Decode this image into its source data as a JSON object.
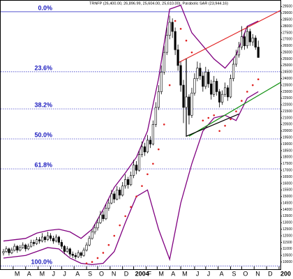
{
  "chart_data": {
    "type": "candlestick",
    "title": "TRNFP (26,400.00, 26,896.99, 25,604.00, 25,610.00), Parabolic SAR (23,944.16)",
    "ylim": [
      9500,
      30000
    ],
    "xlim": [
      -1,
      100
    ],
    "yticks": [
      10000,
      10500,
      11000,
      11500,
      12000,
      12500,
      13000,
      13500,
      14000,
      14500,
      15000,
      15500,
      16000,
      16500,
      17000,
      17500,
      18000,
      18500,
      19000,
      19500,
      20000,
      20500,
      21000,
      21500,
      22000,
      22500,
      23000,
      23500,
      24000,
      24500,
      25000,
      25500,
      26000,
      26500,
      27000,
      27500,
      28000,
      28500,
      29000,
      29500
    ],
    "xticks": [
      {
        "value": 3.5,
        "label": "M"
      },
      {
        "value": 8,
        "label": "A"
      },
      {
        "value": 12.5,
        "label": "M"
      },
      {
        "value": 17,
        "label": "J"
      },
      {
        "value": 21,
        "label": "J"
      },
      {
        "value": 25.5,
        "label": "A"
      },
      {
        "value": 30,
        "label": "S"
      },
      {
        "value": 34,
        "label": "O"
      },
      {
        "value": 38.5,
        "label": "N"
      },
      {
        "value": 43,
        "label": "D"
      },
      {
        "value": 47,
        "label": "2004"
      },
      {
        "value": 51.5,
        "label": "F"
      },
      {
        "value": 55.5,
        "label": "M"
      },
      {
        "value": 60,
        "label": "A"
      },
      {
        "value": 64,
        "label": "M"
      },
      {
        "value": 69,
        "label": "J"
      },
      {
        "value": 73,
        "label": "J"
      },
      {
        "value": 77.5,
        "label": "A"
      },
      {
        "value": 82,
        "label": "S"
      },
      {
        "value": 86,
        "label": "O"
      },
      {
        "value": 90.5,
        "label": "N"
      },
      {
        "value": 95,
        "label": "D"
      },
      {
        "value": 99.5,
        "label": "200"
      }
    ],
    "fib_levels": [
      {
        "value": 29100,
        "label": "0.0%"
      },
      {
        "value": 24522,
        "label": "23.6%"
      },
      {
        "value": 21689,
        "label": "38.2%"
      },
      {
        "value": 19400,
        "label": "50.0%"
      },
      {
        "value": 17111,
        "label": "61.8%"
      },
      {
        "value": 9700,
        "label": "100.0%"
      }
    ],
    "fib_color": "#2020c0",
    "ohlc": [
      [
        10700,
        11000,
        10500,
        10800
      ],
      [
        10800,
        11200,
        10700,
        11000
      ],
      [
        11000,
        11100,
        10500,
        10700
      ],
      [
        10700,
        11100,
        10600,
        10900
      ],
      [
        10900,
        11400,
        10800,
        11200
      ],
      [
        11200,
        11300,
        10700,
        10900
      ],
      [
        10900,
        11300,
        10800,
        11100
      ],
      [
        11100,
        11500,
        11000,
        11300
      ],
      [
        11300,
        11400,
        10800,
        11000
      ],
      [
        11000,
        11400,
        10900,
        11200
      ],
      [
        11200,
        11700,
        11100,
        11500
      ],
      [
        11500,
        11700,
        11200,
        11400
      ],
      [
        11400,
        11900,
        11300,
        11700
      ],
      [
        11700,
        11900,
        11400,
        11600
      ],
      [
        11600,
        12200,
        11500,
        11900
      ],
      [
        11900,
        12000,
        11500,
        11700
      ],
      [
        11700,
        12300,
        11600,
        12000
      ],
      [
        12000,
        12200,
        11600,
        11800
      ],
      [
        11800,
        12000,
        11400,
        11600
      ],
      [
        11600,
        12100,
        11500,
        11900
      ],
      [
        11900,
        12000,
        11300,
        11500
      ],
      [
        11500,
        11700,
        11000,
        11200
      ],
      [
        11200,
        11300,
        10600,
        10800
      ],
      [
        10800,
        11200,
        10700,
        11000
      ],
      [
        11000,
        11100,
        10400,
        10600
      ],
      [
        10600,
        10800,
        10300,
        10500
      ],
      [
        10500,
        10700,
        10200,
        10400
      ],
      [
        10400,
        10900,
        10300,
        10700
      ],
      [
        10700,
        10800,
        10300,
        10500
      ],
      [
        10500,
        11100,
        10400,
        10900
      ],
      [
        10900,
        11500,
        10800,
        11300
      ],
      [
        11300,
        12000,
        11200,
        11800
      ],
      [
        11800,
        12500,
        11700,
        12300
      ],
      [
        12300,
        12900,
        12100,
        12600
      ],
      [
        12600,
        13300,
        12400,
        13000
      ],
      [
        13000,
        13900,
        12900,
        13600
      ],
      [
        13600,
        13900,
        13100,
        13300
      ],
      [
        13300,
        14400,
        13200,
        14100
      ],
      [
        14100,
        14800,
        13900,
        14500
      ],
      [
        14500,
        15500,
        14400,
        15200
      ],
      [
        15200,
        15400,
        14500,
        14800
      ],
      [
        14800,
        15800,
        14700,
        15500
      ],
      [
        15500,
        15700,
        14800,
        15100
      ],
      [
        15100,
        16100,
        15000,
        15800
      ],
      [
        15800,
        16700,
        15600,
        16300
      ],
      [
        16300,
        16500,
        15600,
        15900
      ],
      [
        15900,
        16900,
        15800,
        16600
      ],
      [
        16600,
        17800,
        16400,
        17400
      ],
      [
        17400,
        17700,
        16700,
        17000
      ],
      [
        17000,
        18500,
        16900,
        18200
      ],
      [
        18200,
        19200,
        18000,
        18800
      ],
      [
        18800,
        19100,
        18100,
        18400
      ],
      [
        18400,
        19700,
        18300,
        19300
      ],
      [
        19300,
        19600,
        18700,
        19000
      ],
      [
        19000,
        20800,
        18900,
        20500
      ],
      [
        20500,
        22200,
        20300,
        21800
      ],
      [
        21800,
        23500,
        21600,
        23000
      ],
      [
        23000,
        25000,
        22800,
        24500
      ],
      [
        24500,
        26500,
        24300,
        26000
      ],
      [
        26000,
        27900,
        25800,
        27300
      ],
      [
        27300,
        28800,
        27000,
        28300
      ],
      [
        28300,
        28600,
        27100,
        27600
      ],
      [
        27600,
        27900,
        25800,
        26200
      ],
      [
        26200,
        26600,
        24600,
        25000
      ],
      [
        25000,
        25300,
        23000,
        23500
      ],
      [
        23500,
        23900,
        20600,
        21800
      ],
      [
        21800,
        23100,
        21500,
        22600
      ],
      [
        22600,
        22800,
        20500,
        21200
      ],
      [
        21200,
        23300,
        21000,
        22900
      ],
      [
        22900,
        24400,
        22700,
        24000
      ],
      [
        24000,
        25300,
        23800,
        24800
      ],
      [
        24800,
        25200,
        23900,
        24200
      ],
      [
        24200,
        24500,
        23000,
        23400
      ],
      [
        23400,
        24900,
        23200,
        24500
      ],
      [
        24500,
        24700,
        23300,
        23600
      ],
      [
        23600,
        23900,
        22400,
        22800
      ],
      [
        22800,
        24200,
        22600,
        23800
      ],
      [
        23800,
        24000,
        22700,
        23000
      ],
      [
        23000,
        23200,
        21800,
        22200
      ],
      [
        22200,
        23100,
        22000,
        22800
      ],
      [
        22800,
        23700,
        22600,
        23300
      ],
      [
        23300,
        23500,
        22300,
        22600
      ],
      [
        22600,
        24300,
        22500,
        24000
      ],
      [
        24000,
        25500,
        23800,
        25100
      ],
      [
        25100,
        26200,
        24900,
        25800
      ],
      [
        25800,
        26800,
        25600,
        26400
      ],
      [
        26400,
        28000,
        26200,
        27200
      ],
      [
        27200,
        27500,
        26200,
        26500
      ],
      [
        26500,
        28000,
        26300,
        27600
      ],
      [
        27600,
        27800,
        26500,
        26800
      ],
      [
        26800,
        27400,
        26500,
        27100
      ],
      [
        27100,
        27300,
        26200,
        26400
      ],
      [
        26400,
        26896.99,
        25604,
        25610
      ]
    ],
    "bands": {
      "color": "#800080",
      "x": [
        0,
        4,
        8,
        12,
        16,
        20,
        24,
        28,
        32,
        36,
        40,
        44,
        48,
        52,
        56,
        60,
        64,
        68,
        72,
        76,
        80,
        84,
        88,
        92
      ],
      "upper": [
        11600,
        11700,
        11800,
        12200,
        12400,
        12500,
        12300,
        11800,
        12500,
        14000,
        15700,
        16800,
        18000,
        20000,
        24000,
        29300,
        29600,
        27500,
        26500,
        25500,
        24800,
        25800,
        28000,
        28400
      ],
      "lower": [
        10300,
        10400,
        10500,
        10800,
        11100,
        11000,
        10300,
        9900,
        9800,
        9900,
        10800,
        13000,
        15000,
        15500,
        12500,
        10200,
        14500,
        17500,
        20000,
        21000,
        21200,
        20800,
        22500,
        23000
      ]
    },
    "sar": {
      "color": "#e02020",
      "x": [
        30,
        32,
        34,
        36,
        38,
        40,
        42,
        44,
        46,
        48,
        50,
        52,
        54,
        56,
        58,
        60,
        62,
        64,
        66,
        68,
        72,
        74,
        76,
        78,
        80,
        82,
        84,
        86,
        88,
        90,
        92
      ],
      "values": [
        9900,
        10000,
        10300,
        10700,
        11300,
        12000,
        12800,
        13500,
        14200,
        15000,
        15800,
        16700,
        17500,
        18600,
        20500,
        23500,
        28400,
        27800,
        26900,
        26000,
        20800,
        21000,
        21200,
        20000,
        20400,
        20900,
        21500,
        22300,
        23000,
        23500,
        23944.16
      ]
    },
    "trendlines": [
      {
        "color": "#e02020",
        "points": [
          [
            63,
            25200
          ],
          [
            100,
            29200
          ]
        ]
      },
      {
        "color": "#109010",
        "points": [
          [
            67,
            19600
          ],
          [
            100,
            23700
          ]
        ]
      },
      {
        "color": "#000000",
        "points": [
          [
            66,
            25500
          ],
          [
            66,
            19600
          ],
          [
            85,
            21300
          ]
        ]
      }
    ]
  }
}
